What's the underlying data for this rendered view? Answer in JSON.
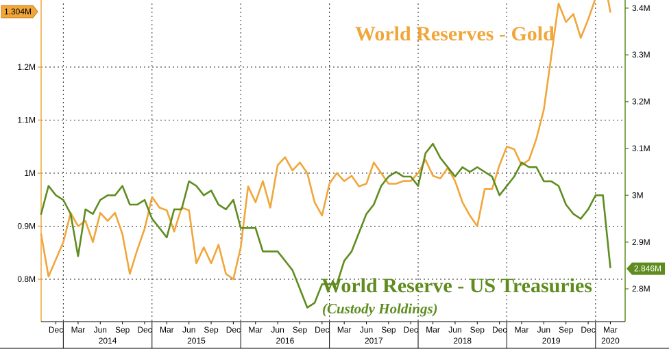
{
  "chart_data": {
    "type": "line",
    "left_axis": {
      "tick_labels": [
        "0.8M",
        "0.9M",
        "1M",
        "1.1M",
        "1.2M"
      ],
      "tick_values": [
        0.8,
        0.9,
        1.0,
        1.1,
        1.2
      ],
      "ylim": [
        0.72,
        1.32
      ],
      "color": "#f0a63a",
      "last_value_label": "1.304M"
    },
    "right_axis": {
      "tick_labels": [
        "2.8M",
        "2.9M",
        "3M",
        "3.1M",
        "3.2M",
        "3.3M",
        "3.4M"
      ],
      "tick_values": [
        2.8,
        2.9,
        3.0,
        3.1,
        3.2,
        3.3,
        3.4
      ],
      "ylim": [
        2.73,
        3.41
      ],
      "color": "#5e8c1f",
      "last_value_label": "2.846M"
    },
    "x_axis": {
      "month_labels": [
        "Dec",
        "Mar",
        "Jun",
        "Sep",
        "Dec",
        "Mar",
        "Jun",
        "Sep",
        "Dec",
        "Mar",
        "Jun",
        "Sep",
        "Dec",
        "Mar",
        "Jun",
        "Sep",
        "Dec",
        "Mar",
        "Jun",
        "Sep",
        "Dec",
        "Mar",
        "Jun",
        "Sep",
        "Dec",
        "Mar"
      ],
      "month_values": [
        "2013-12",
        "2014-03",
        "2014-06",
        "2014-09",
        "2014-12",
        "2015-03",
        "2015-06",
        "2015-09",
        "2015-12",
        "2016-03",
        "2016-06",
        "2016-09",
        "2016-12",
        "2017-03",
        "2017-06",
        "2017-09",
        "2017-12",
        "2018-03",
        "2018-06",
        "2018-09",
        "2018-12",
        "2019-03",
        "2019-06",
        "2019-09",
        "2019-12",
        "2020-03"
      ],
      "year_labels": [
        "2014",
        "2015",
        "2016",
        "2017",
        "2018",
        "2019",
        "2020"
      ],
      "year_values": [
        "2014-07",
        "2015-07",
        "2016-07",
        "2017-07",
        "2018-07",
        "2019-07",
        "2020-03"
      ],
      "range": [
        "2013-10",
        "2020-05"
      ]
    },
    "grid": true,
    "series": [
      {
        "name": "World Reserves - Gold",
        "axis": "left",
        "color": "#f0a63a",
        "x": [
          "2013-10",
          "2013-11",
          "2014-01",
          "2014-02",
          "2014-03",
          "2014-04",
          "2014-05",
          "2014-06",
          "2014-07",
          "2014-08",
          "2014-09",
          "2014-10",
          "2014-11",
          "2014-12",
          "2015-01",
          "2015-02",
          "2015-03",
          "2015-04",
          "2015-05",
          "2015-06",
          "2015-07",
          "2015-08",
          "2015-09",
          "2015-10",
          "2015-11",
          "2015-12",
          "2016-01",
          "2016-02",
          "2016-03",
          "2016-04",
          "2016-05",
          "2016-06",
          "2016-07",
          "2016-08",
          "2016-09",
          "2016-10",
          "2016-11",
          "2016-12",
          "2017-01",
          "2017-02",
          "2017-03",
          "2017-04",
          "2017-05",
          "2017-06",
          "2017-07",
          "2017-08",
          "2017-09",
          "2017-10",
          "2017-11",
          "2017-12",
          "2018-01",
          "2018-02",
          "2018-03",
          "2018-04",
          "2018-05",
          "2018-06",
          "2018-07",
          "2018-08",
          "2018-09",
          "2018-10",
          "2018-11",
          "2018-12",
          "2019-01",
          "2019-02",
          "2019-03",
          "2019-04",
          "2019-05",
          "2019-06",
          "2019-07",
          "2019-08",
          "2019-09",
          "2019-10",
          "2019-11",
          "2019-12",
          "2020-01",
          "2020-02",
          "2020-03"
        ],
        "values": [
          0.885,
          0.805,
          0.87,
          0.925,
          0.9,
          0.91,
          0.87,
          0.925,
          0.91,
          0.925,
          0.885,
          0.81,
          0.855,
          0.895,
          0.955,
          0.935,
          0.93,
          0.89,
          0.935,
          0.93,
          0.83,
          0.86,
          0.83,
          0.865,
          0.81,
          0.8,
          0.86,
          0.975,
          0.945,
          0.985,
          0.935,
          1.015,
          1.03,
          1.005,
          1.02,
          1.0,
          0.945,
          0.92,
          0.98,
          1.0,
          0.985,
          0.995,
          0.975,
          0.98,
          1.02,
          1.0,
          0.98,
          0.98,
          0.985,
          0.985,
          1.0,
          1.025,
          0.995,
          0.99,
          1.01,
          0.985,
          0.945,
          0.92,
          0.9,
          0.97,
          0.97,
          1.015,
          1.05,
          1.045,
          1.015,
          1.025,
          1.065,
          1.12,
          1.22,
          1.32,
          1.285,
          1.3,
          1.255,
          1.29,
          1.33,
          1.38,
          1.304
        ]
      },
      {
        "name": "World Reserve - US Treasuries",
        "axis": "right",
        "color": "#5e8c1f",
        "x": [
          "2013-10",
          "2013-11",
          "2013-12",
          "2014-01",
          "2014-02",
          "2014-03",
          "2014-04",
          "2014-05",
          "2014-06",
          "2014-07",
          "2014-08",
          "2014-09",
          "2014-10",
          "2014-11",
          "2014-12",
          "2015-01",
          "2015-02",
          "2015-03",
          "2015-04",
          "2015-05",
          "2015-06",
          "2015-07",
          "2015-08",
          "2015-09",
          "2015-10",
          "2015-11",
          "2015-12",
          "2016-01",
          "2016-02",
          "2016-03",
          "2016-04",
          "2016-05",
          "2016-06",
          "2016-07",
          "2016-08",
          "2016-09",
          "2016-10",
          "2016-11",
          "2016-12",
          "2017-01",
          "2017-02",
          "2017-03",
          "2017-04",
          "2017-05",
          "2017-06",
          "2017-07",
          "2017-08",
          "2017-09",
          "2017-10",
          "2017-11",
          "2017-12",
          "2018-01",
          "2018-02",
          "2018-03",
          "2018-04",
          "2018-05",
          "2018-06",
          "2018-07",
          "2018-08",
          "2018-09",
          "2018-10",
          "2018-11",
          "2018-12",
          "2019-01",
          "2019-02",
          "2019-03",
          "2019-04",
          "2019-05",
          "2019-06",
          "2019-07",
          "2019-08",
          "2019-09",
          "2019-10",
          "2019-11",
          "2019-12",
          "2020-01",
          "2020-02",
          "2020-03"
        ],
        "values": [
          2.96,
          3.02,
          3.0,
          2.99,
          2.96,
          2.87,
          2.97,
          2.96,
          2.99,
          3.0,
          3.0,
          3.02,
          2.98,
          2.98,
          2.99,
          2.95,
          2.93,
          2.91,
          2.97,
          2.97,
          3.03,
          3.02,
          3.0,
          3.01,
          2.98,
          2.97,
          2.99,
          2.93,
          2.93,
          2.93,
          2.88,
          2.88,
          2.88,
          2.86,
          2.84,
          2.8,
          2.76,
          2.77,
          2.81,
          2.81,
          2.81,
          2.86,
          2.88,
          2.92,
          2.96,
          2.98,
          3.02,
          3.04,
          3.05,
          3.04,
          3.04,
          3.02,
          3.09,
          3.11,
          3.08,
          3.06,
          3.04,
          3.06,
          3.05,
          3.06,
          3.05,
          3.04,
          3.0,
          3.02,
          3.04,
          3.07,
          3.06,
          3.06,
          3.03,
          3.03,
          3.02,
          2.98,
          2.96,
          2.95,
          2.97,
          3.0,
          3.0,
          2.846
        ]
      }
    ],
    "annotations": {
      "gold_title": "World Reserves - Gold",
      "ust_title": "World Reserve - US Treasuries",
      "ust_subtitle": "(Custody Holdings)"
    }
  }
}
